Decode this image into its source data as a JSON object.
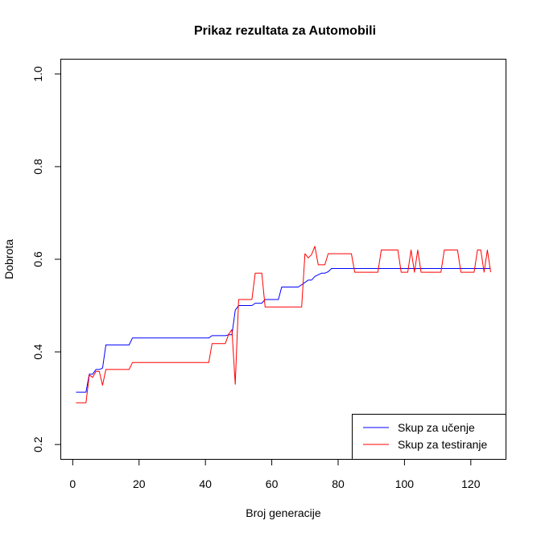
{
  "chart_data": {
    "type": "line",
    "title": "Prikaz rezultata za Automobili",
    "xlabel": "Broj generacije",
    "ylabel": "Dobrota",
    "xlim": [
      -3.6,
      130.6
    ],
    "ylim": [
      0.168,
      1.032
    ],
    "xticks": [
      0,
      20,
      40,
      60,
      80,
      100,
      120
    ],
    "yticks": [
      0.2,
      0.4,
      0.6,
      0.8,
      1.0
    ],
    "xtick_labels": [
      "0",
      "20",
      "40",
      "60",
      "80",
      "100",
      "120"
    ],
    "ytick_labels": [
      "0.2",
      "0.4",
      "0.6",
      "0.8",
      "1.0"
    ],
    "grid": false,
    "legend_position": "bottom-right",
    "series": [
      {
        "name": "Skup za učenje",
        "color": "#0000ff",
        "x": [
          1,
          2,
          3,
          4,
          5,
          6,
          7,
          8,
          9,
          10,
          17,
          18,
          41,
          42,
          46,
          47,
          48,
          49,
          50,
          51,
          54,
          55,
          57,
          58,
          62,
          63,
          67,
          68,
          70,
          71,
          72,
          73,
          75,
          76,
          77,
          78,
          126
        ],
        "y": [
          0.313,
          0.313,
          0.313,
          0.313,
          0.352,
          0.352,
          0.362,
          0.362,
          0.365,
          0.415,
          0.415,
          0.43,
          0.43,
          0.435,
          0.435,
          0.437,
          0.437,
          0.49,
          0.5,
          0.5,
          0.5,
          0.505,
          0.505,
          0.513,
          0.513,
          0.54,
          0.54,
          0.54,
          0.55,
          0.555,
          0.555,
          0.563,
          0.57,
          0.57,
          0.573,
          0.58,
          0.58
        ]
      },
      {
        "name": "Skup za testiranje",
        "color": "#ff0000",
        "x": [
          1,
          2,
          3,
          4,
          5,
          6,
          7,
          8,
          9,
          10,
          11,
          17,
          18,
          41,
          42,
          45,
          46,
          47,
          48,
          49,
          50,
          51,
          54,
          55,
          57,
          58,
          67,
          68,
          69,
          70,
          71,
          72,
          73,
          74,
          76,
          77,
          84,
          85,
          92,
          93,
          98,
          99,
          101,
          102,
          103,
          104,
          105,
          111,
          112,
          116,
          117,
          121,
          122,
          123,
          124,
          125,
          126
        ],
        "y": [
          0.29,
          0.29,
          0.29,
          0.29,
          0.35,
          0.345,
          0.358,
          0.358,
          0.328,
          0.362,
          0.362,
          0.362,
          0.377,
          0.377,
          0.418,
          0.418,
          0.418,
          0.438,
          0.448,
          0.33,
          0.513,
          0.513,
          0.513,
          0.57,
          0.57,
          0.497,
          0.497,
          0.497,
          0.497,
          0.612,
          0.603,
          0.61,
          0.628,
          0.588,
          0.588,
          0.612,
          0.612,
          0.572,
          0.572,
          0.62,
          0.62,
          0.572,
          0.572,
          0.62,
          0.572,
          0.62,
          0.572,
          0.572,
          0.62,
          0.62,
          0.572,
          0.572,
          0.62,
          0.62,
          0.572,
          0.62,
          0.572
        ]
      }
    ]
  }
}
